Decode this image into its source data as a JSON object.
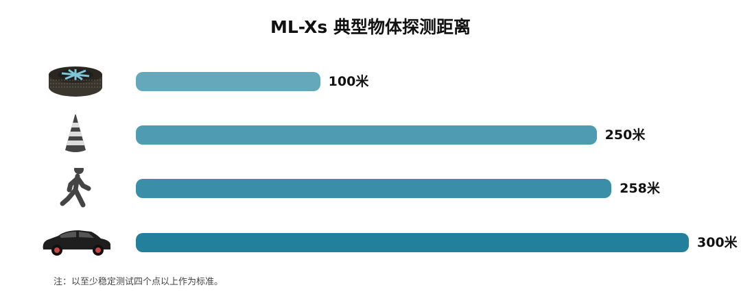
{
  "chart_data": {
    "type": "bar",
    "orientation": "horizontal",
    "title": "ML-Xs 典型物体探测距离",
    "categories": [
      "tire",
      "traffic-cone",
      "pedestrian",
      "car"
    ],
    "values": [
      100,
      250,
      258,
      300
    ],
    "unit": "米",
    "value_labels": [
      "100米",
      "250米",
      "258米",
      "300米"
    ],
    "colors": [
      "#66a8bb",
      "#4f9bb2",
      "#3a8ea8",
      "#23809c"
    ],
    "icons": [
      "tire-icon",
      "traffic-cone-icon",
      "pedestrian-icon",
      "car-icon"
    ],
    "xlim": [
      0,
      300
    ],
    "grid": false
  },
  "note": "注：以至少稳定测试四个点以上作为标准。"
}
